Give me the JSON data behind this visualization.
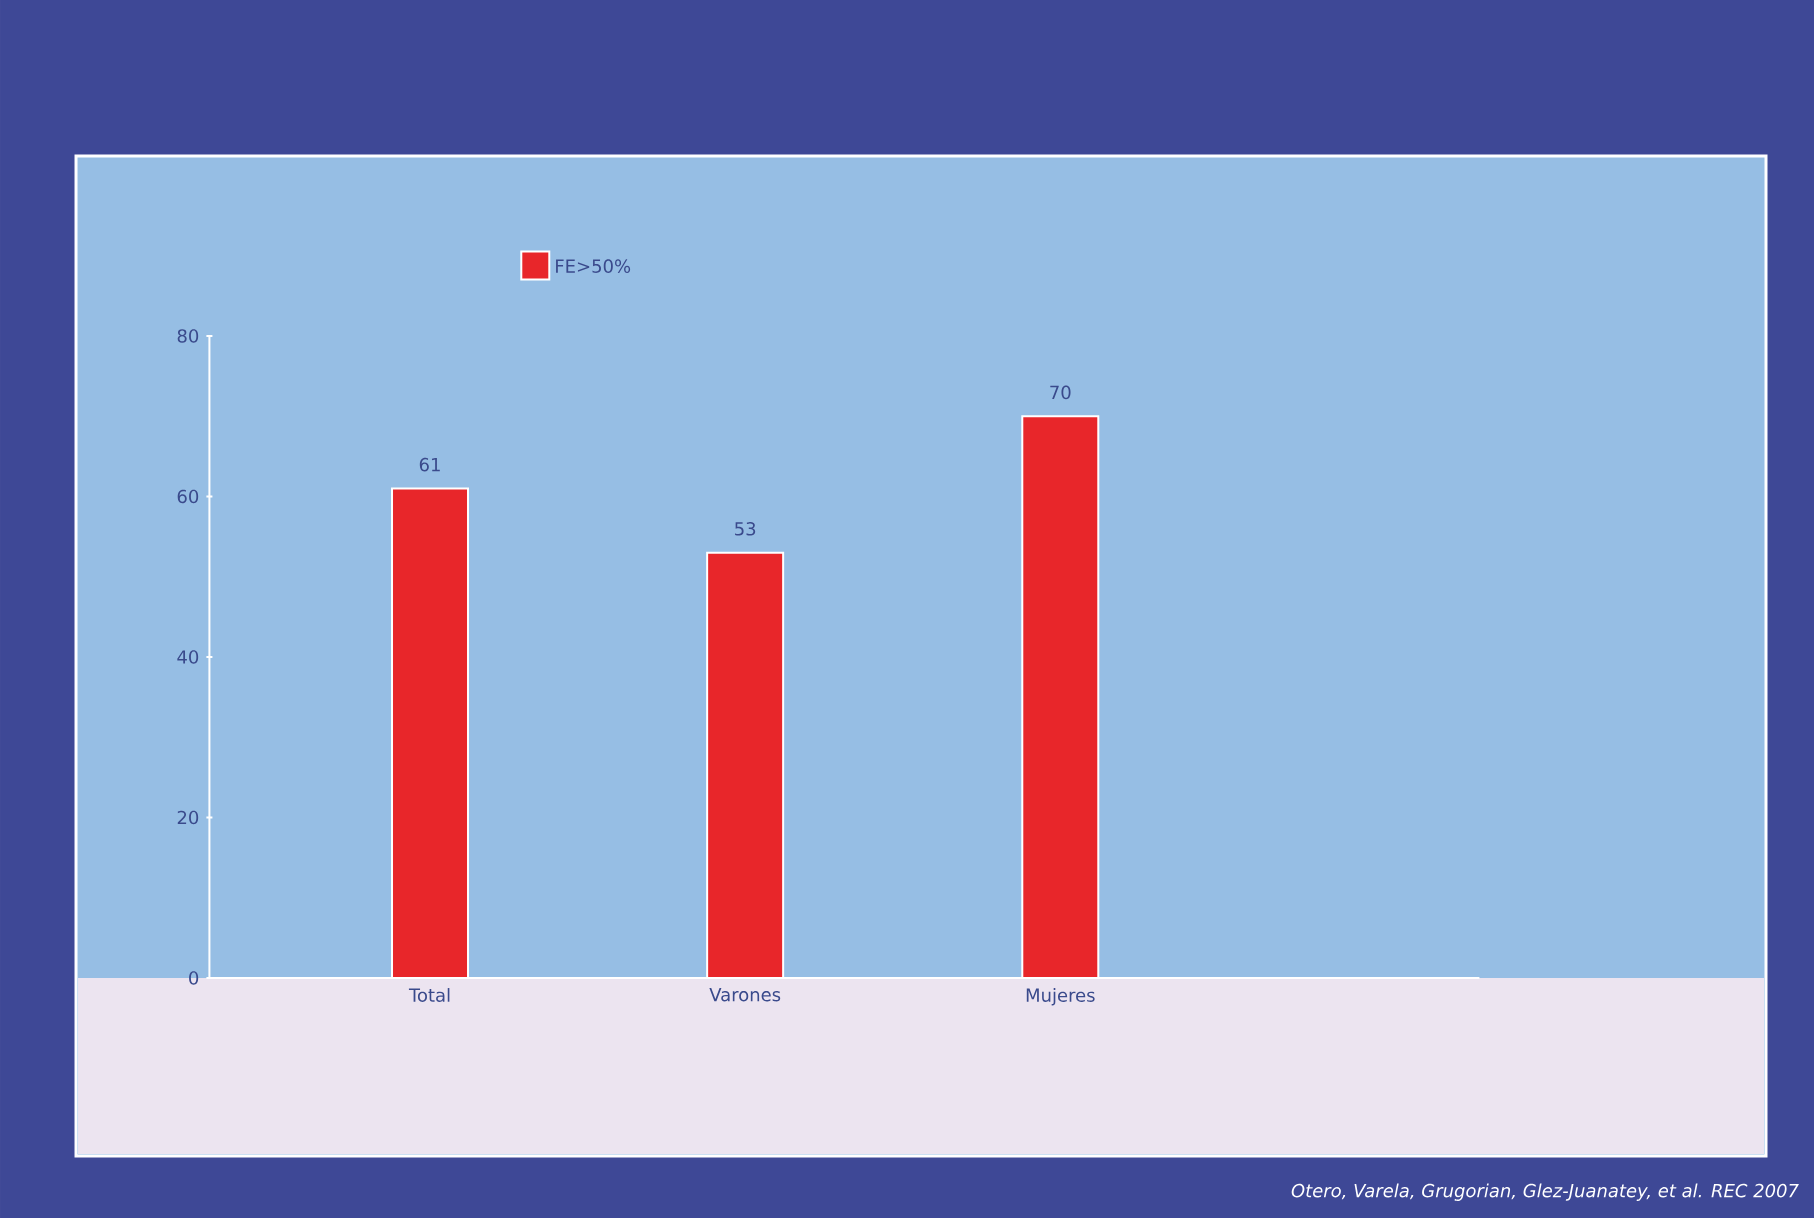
{
  "chart_data": {
    "type": "bar",
    "categories": [
      "Total",
      "Varones",
      "Mujeres"
    ],
    "series": [
      {
        "name": "FE>50%",
        "color": "#e8262a",
        "values": [
          61,
          53,
          70
        ]
      }
    ],
    "ylim": [
      0,
      80
    ],
    "yticks": [
      0,
      20,
      40,
      60,
      80
    ],
    "data_labels": true,
    "legend": "top",
    "grid": false,
    "annotations": [
      "Otero, Varela, Grugorian, Glez-Juanatey, et al. REC 2007"
    ]
  }
}
